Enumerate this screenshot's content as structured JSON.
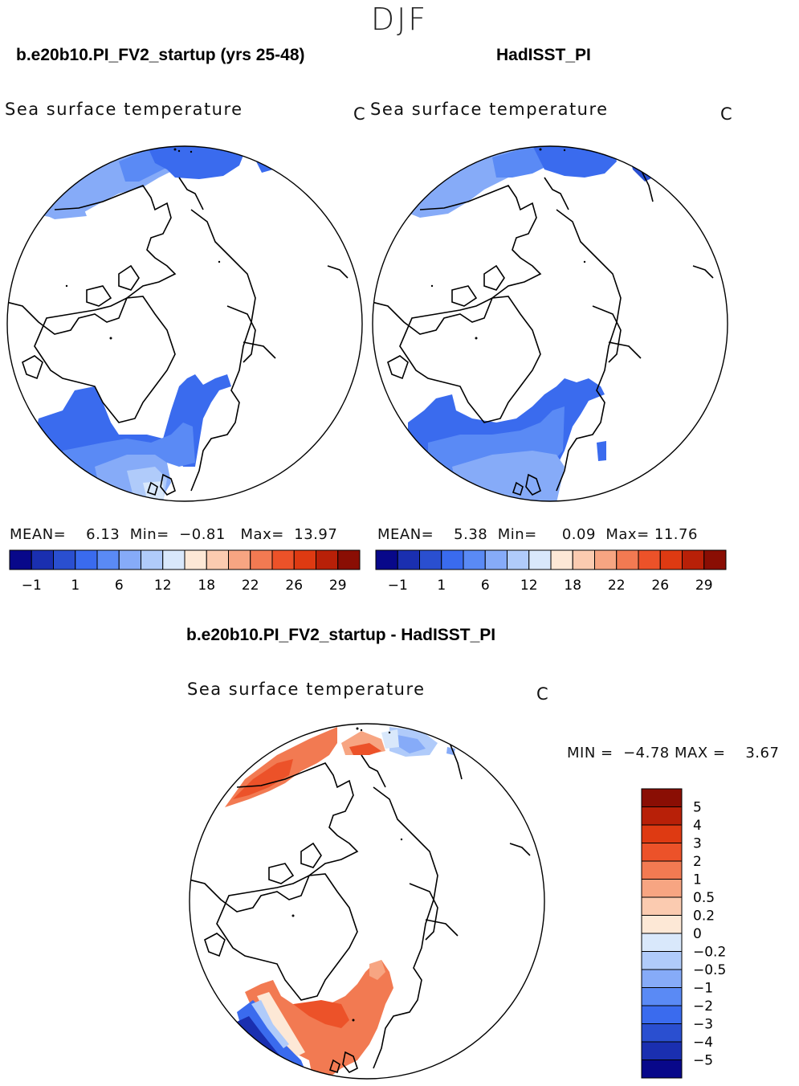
{
  "season": "DJF",
  "panels": [
    {
      "run_title": "b.e20b10.PI_FV2_startup (yrs 25-48)",
      "var_title": "Sea surface temperature",
      "units": "C",
      "mean_label": "MEAN=",
      "mean": "6.13",
      "min_label": "Min=",
      "min": "−0.81",
      "max_label": "Max=",
      "max": "13.97"
    },
    {
      "run_title": "HadISST_PI",
      "var_title": "Sea surface temperature",
      "units": "C",
      "mean_label": "MEAN=",
      "mean": "5.38",
      "min_label": "Min=",
      "min": "0.09",
      "max_label": "Max=",
      "max": "11.76"
    }
  ],
  "diff_panel": {
    "run_title": "b.e20b10.PI_FV2_startup - HadISST_PI",
    "var_title": "Sea surface temperature",
    "units": "C",
    "min_label": "MIN =",
    "min": "−4.78",
    "max_label": "MAX =",
    "max": "3.67"
  },
  "chart_data": [
    {
      "type": "heatmap",
      "title": "b.e20b10.PI_FV2_startup (yrs 25-48)",
      "projection": "north polar stereographic",
      "variable": "Sea surface temperature",
      "units": "C",
      "colorbar_orientation": "horizontal",
      "colorbar_colors": [
        "#08088a",
        "#1a2fb0",
        "#2a4fd0",
        "#3a6bee",
        "#5a8af5",
        "#86abf8",
        "#b0cbfa",
        "#d9e8fb",
        "#fde8d6",
        "#fbcbb0",
        "#f7a582",
        "#f27a52",
        "#ec5229",
        "#de3a12",
        "#b82008",
        "#8a0e04"
      ],
      "colorbar_tick_labels": [
        "−1",
        "1",
        "6",
        "12",
        "18",
        "22",
        "26",
        "29"
      ],
      "mean": 6.13,
      "min": -0.81,
      "max": 13.97
    },
    {
      "type": "heatmap",
      "title": "HadISST_PI",
      "projection": "north polar stereographic",
      "variable": "Sea surface temperature",
      "units": "C",
      "colorbar_orientation": "horizontal",
      "colorbar_colors": [
        "#08088a",
        "#1a2fb0",
        "#2a4fd0",
        "#3a6bee",
        "#5a8af5",
        "#86abf8",
        "#b0cbfa",
        "#d9e8fb",
        "#fde8d6",
        "#fbcbb0",
        "#f7a582",
        "#f27a52",
        "#ec5229",
        "#de3a12",
        "#b82008",
        "#8a0e04"
      ],
      "colorbar_tick_labels": [
        "−1",
        "1",
        "6",
        "12",
        "18",
        "22",
        "26",
        "29"
      ],
      "mean": 5.38,
      "min": 0.09,
      "max": 11.76
    },
    {
      "type": "heatmap",
      "title": "b.e20b10.PI_FV2_startup - HadISST_PI",
      "projection": "north polar stereographic",
      "variable": "Sea surface temperature",
      "units": "C",
      "colorbar_orientation": "vertical",
      "colorbar_colors": [
        "#8a0e04",
        "#b82008",
        "#de3a12",
        "#ec5229",
        "#f27a52",
        "#f7a582",
        "#fbcbb0",
        "#fde8d6",
        "#d9e8fb",
        "#b0cbfa",
        "#86abf8",
        "#5a8af5",
        "#3a6bee",
        "#2a4fd0",
        "#1a2fb0",
        "#08088a"
      ],
      "colorbar_tick_labels": [
        "5",
        "4",
        "3",
        "2",
        "1",
        "0.5",
        "0.2",
        "0",
        "−0.2",
        "−0.5",
        "−1",
        "−2",
        "−3",
        "−4",
        "−5"
      ],
      "min": -4.78,
      "max": 3.67
    }
  ]
}
